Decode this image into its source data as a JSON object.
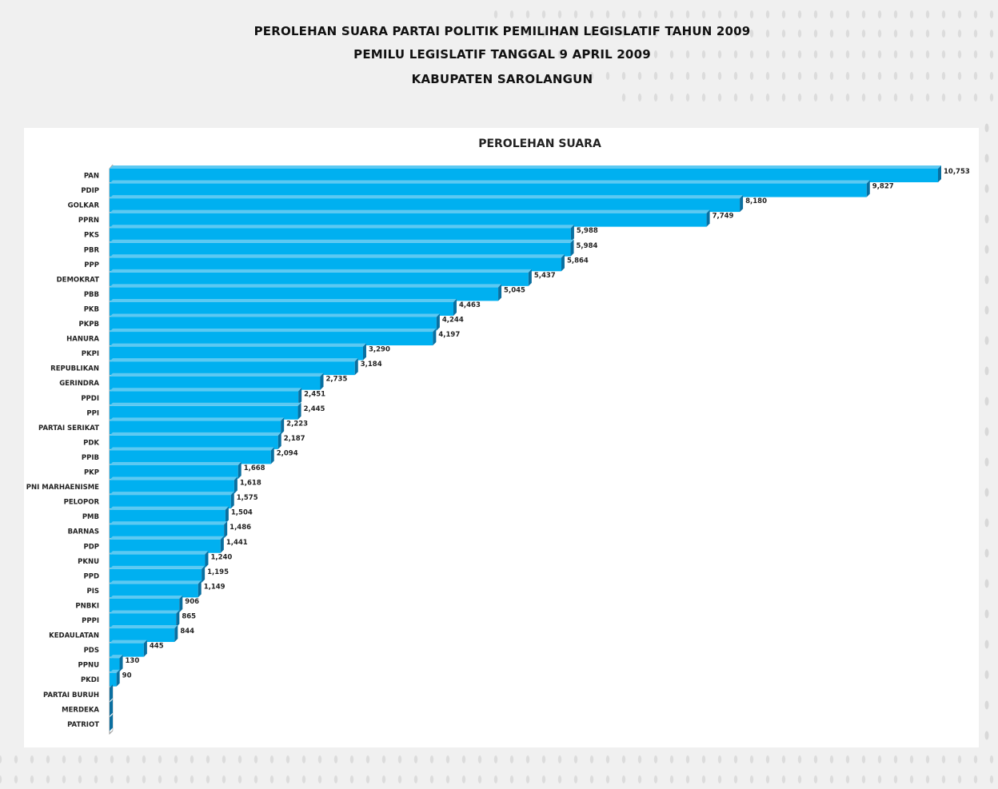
{
  "page": {
    "heading_line1": "PEROLEHAN SUARA PARTAI POLITIK PEMILIHAN LEGISLATIF TAHUN 2009",
    "heading_line2": "PEMILU LEGISLATIF TANGGAL 9 APRIL 2009",
    "heading_line3": "KABUPATEN SAROLANGUN"
  },
  "colors": {
    "bar_face": "#00b0f0",
    "bar_top": "#5cc9f2",
    "bar_side": "#0a6fa0",
    "page_background": "#f0f0f0",
    "panel_background": "#ffffff"
  },
  "chart_data": {
    "type": "bar",
    "orientation": "horizontal",
    "style": "3d",
    "title": "PEROLEHAN SUARA",
    "xlabel": "",
    "ylabel": "",
    "xlim": [
      0,
      10753
    ],
    "grid": false,
    "legend": "none",
    "categories": [
      "PAN",
      "PDIP",
      "GOLKAR",
      "PPRN",
      "PKS",
      "PBR",
      "PPP",
      "DEMOKRAT",
      "PBB",
      "PKB",
      "PKPB",
      "HANURA",
      "PKPI",
      "REPUBLIKAN",
      "GERINDRA",
      "PPDI",
      "PPI",
      "PARTAI SERIKAT",
      "PDK",
      "PPIB",
      "PKP",
      "PNI MARHAENISME",
      "PELOPOR",
      "PMB",
      "BARNAS",
      "PDP",
      "PKNU",
      "PPD",
      "PIS",
      "PNBKI",
      "PPPI",
      "KEDAULATAN",
      "PDS",
      "PPNU",
      "PKDI",
      "PARTAI BURUH",
      "MERDEKA",
      "PATRIOT"
    ],
    "values": [
      10753,
      9827,
      8180,
      7749,
      5988,
      5984,
      5864,
      5437,
      5045,
      4463,
      4244,
      4197,
      3290,
      3184,
      2735,
      2451,
      2445,
      2223,
      2187,
      2094,
      1668,
      1618,
      1575,
      1504,
      1486,
      1441,
      1240,
      1195,
      1149,
      906,
      865,
      844,
      445,
      130,
      90,
      0,
      0,
      0
    ],
    "value_labels": [
      "10,753",
      "9,827",
      "8,180",
      "7,749",
      "5,988",
      "5,984",
      "5,864",
      "5,437",
      "5,045",
      "4,463",
      "4,244",
      "4,197",
      "3,290",
      "3,184",
      "2,735",
      "2,451",
      "2,445",
      "2,223",
      "2,187",
      "2,094",
      "1,668",
      "1,618",
      "1,575",
      "1,504",
      "1,486",
      "1,441",
      "1,240",
      "1,195",
      "1,149",
      "906",
      "865",
      "844",
      "445",
      "130",
      "90",
      "",
      "",
      ""
    ]
  }
}
